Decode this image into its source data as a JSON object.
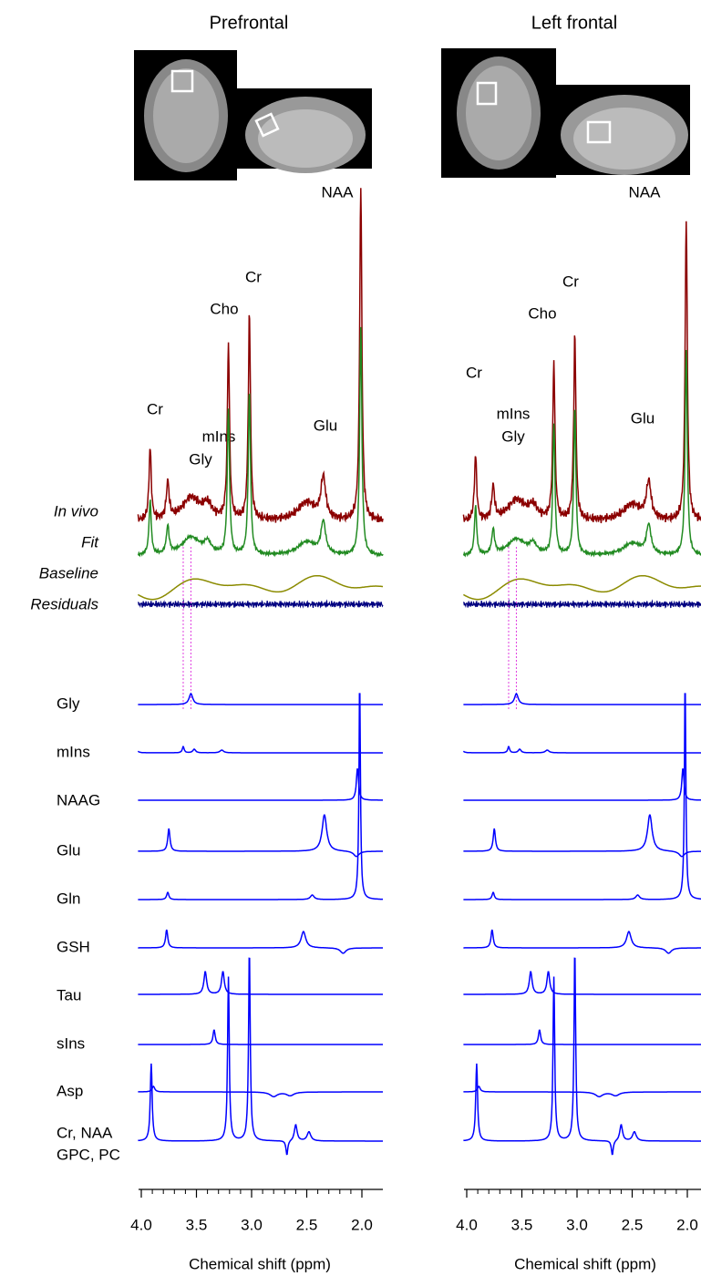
{
  "panels": [
    {
      "title": "Prefrontal",
      "peak_labels": [
        "NAA",
        "Cr",
        "Cho",
        "Cr",
        "mIns",
        "Gly",
        "Glu"
      ]
    },
    {
      "title": "Left frontal",
      "peak_labels": [
        "NAA",
        "Cr",
        "Cho",
        "Cr",
        "mIns",
        "Gly",
        "Glu"
      ]
    }
  ],
  "trace_labels": [
    "In vivo",
    "Fit",
    "Baseline",
    "Residuals"
  ],
  "metabolite_labels": [
    "Gly",
    "mIns",
    "NAAG",
    "Glu",
    "Gln",
    "GSH",
    "Tau",
    "sIns",
    "Asp",
    "Cr, NAA",
    "GPC, PC"
  ],
  "x_axis": {
    "label": "Chemical shift  (ppm)",
    "ticks": [
      {
        "value": 4.0,
        "label": "4.0"
      },
      {
        "value": 3.5,
        "label": "3.5"
      },
      {
        "value": 3.0,
        "label": "3.0"
      },
      {
        "value": 2.5,
        "label": "2.5"
      },
      {
        "value": 2.0,
        "label": "2.0"
      }
    ]
  }
}
